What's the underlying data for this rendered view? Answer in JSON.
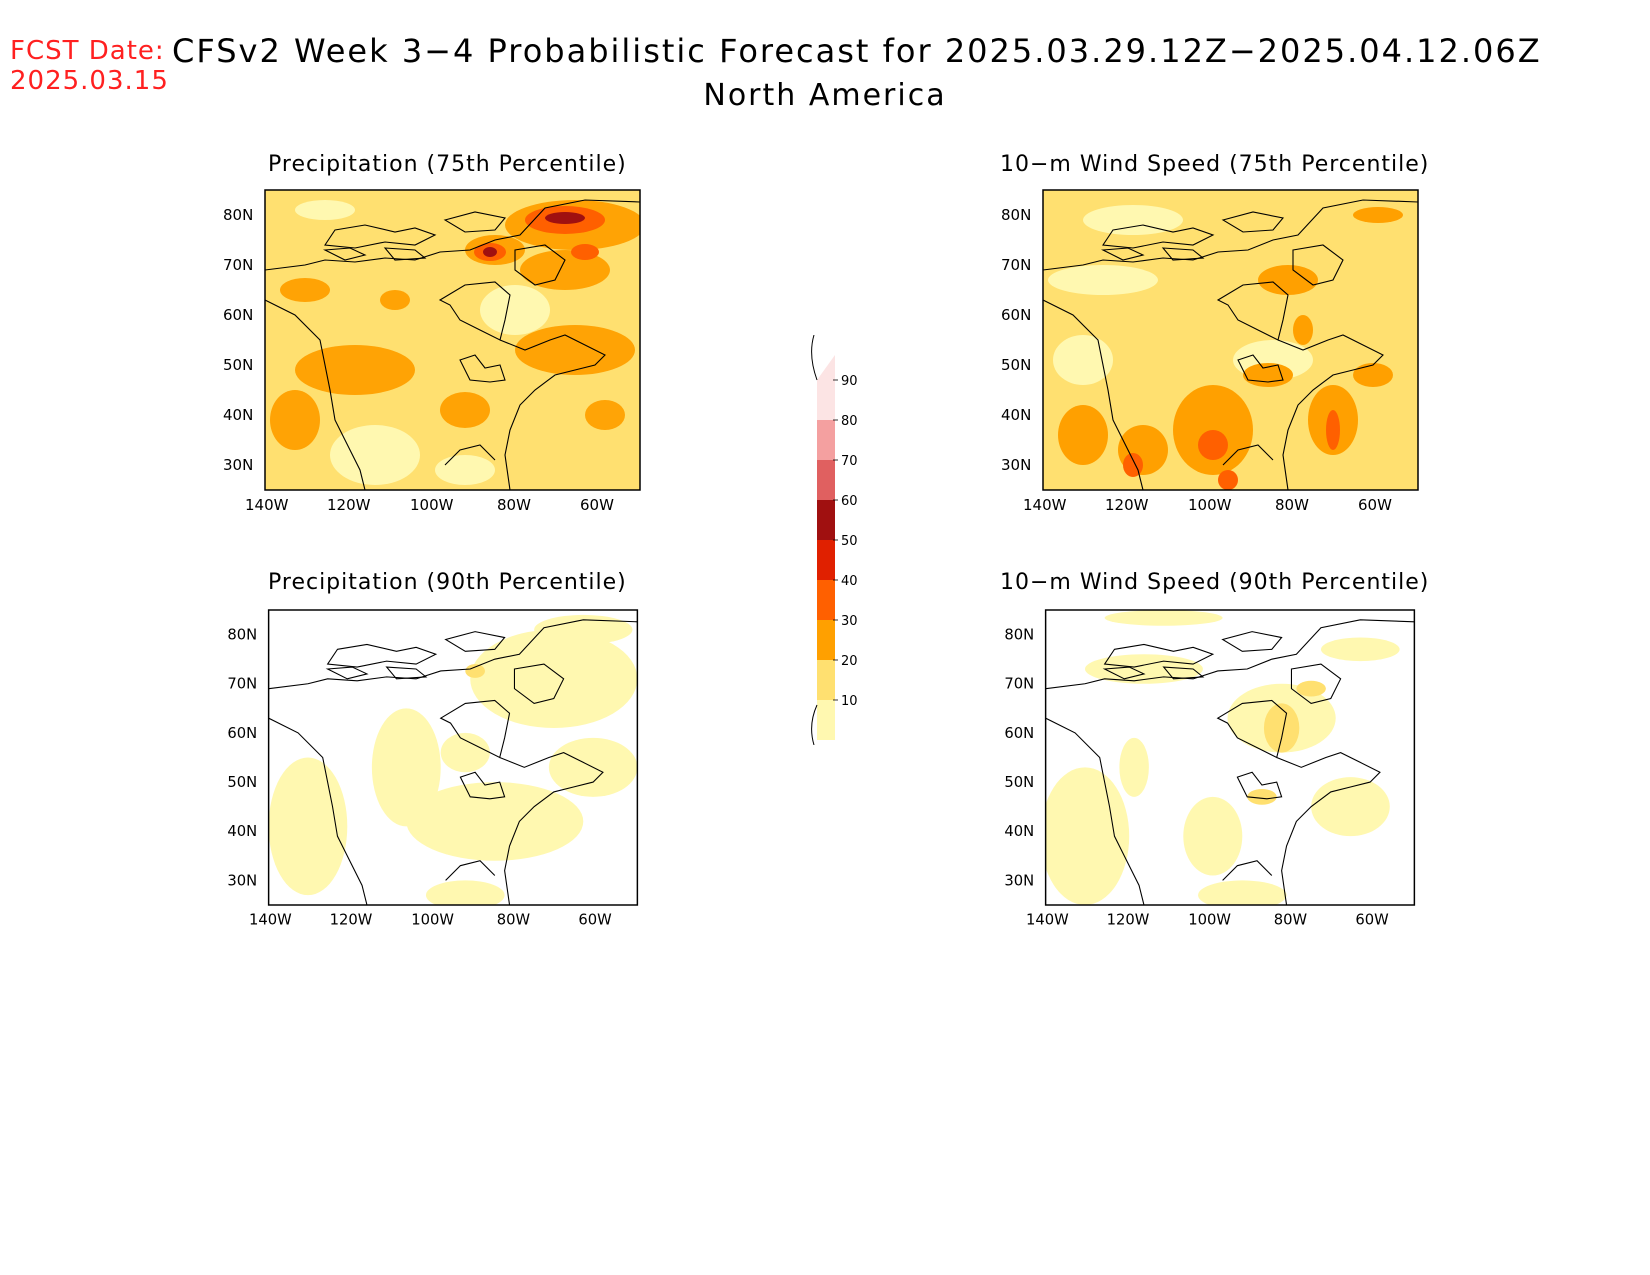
{
  "header": {
    "fcst_label": "FCST Date:",
    "fcst_date": "2025.03.15",
    "title": "CFSv2 Week 3−4 Probabilistic Forecast for 2025.03.29.12Z−2025.04.12.06Z",
    "region": "North America"
  },
  "axes": {
    "lon_ticks": [
      "140W",
      "120W",
      "100W",
      "80W",
      "60W"
    ],
    "lat_ticks": [
      "80N",
      "70N",
      "60N",
      "50N",
      "40N",
      "30N"
    ]
  },
  "panels": [
    {
      "id": "precip75",
      "title": "Precipitation (75th Percentile)",
      "variable": "Precipitation",
      "percentile": 75
    },
    {
      "id": "wind75",
      "title": "10−m Wind Speed (75th Percentile)",
      "variable": "10-m Wind Speed",
      "percentile": 75
    },
    {
      "id": "precip90",
      "title": "Precipitation (90th Percentile)",
      "variable": "Precipitation",
      "percentile": 90
    },
    {
      "id": "wind90",
      "title": "10−m Wind Speed (90th Percentile)",
      "variable": "10-m Wind Speed",
      "percentile": 90
    }
  ],
  "colorbar": {
    "labels": [
      "90",
      "80",
      "70",
      "60",
      "50",
      "40",
      "30",
      "20",
      "10"
    ],
    "colors": [
      "#fce4e4",
      "#f4a0a0",
      "#e06060",
      "#a01010",
      "#e02000",
      "#ff6000",
      "#ffa000",
      "#ffe070",
      "#fff8b0"
    ]
  }
}
